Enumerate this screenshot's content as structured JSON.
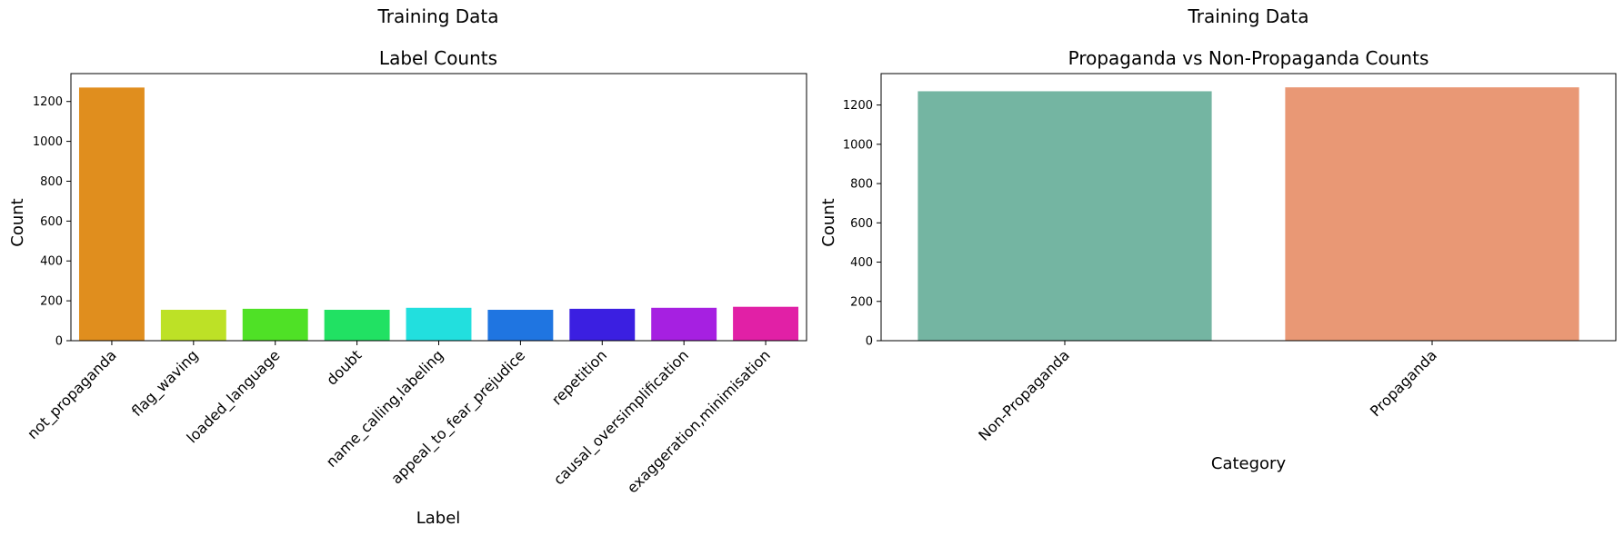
{
  "chart_data": [
    {
      "type": "bar",
      "suptitle": "Training Data",
      "title": "Label Counts",
      "xlabel": "Label",
      "ylabel": "Count",
      "ylim": [
        0,
        1340
      ],
      "yticks": [
        0,
        200,
        400,
        600,
        800,
        1000,
        1200
      ],
      "categories": [
        "not_propaganda",
        "flag_waving",
        "loaded_language",
        "doubt",
        "name_calling,labeling",
        "appeal_to_fear_prejudice",
        "repetition",
        "causal_oversimplification",
        "exaggeration,minimisation"
      ],
      "values": [
        1270,
        155,
        160,
        155,
        165,
        155,
        160,
        165,
        170
      ],
      "colors": [
        "#e08e1e",
        "#bde126",
        "#4fe126",
        "#21e163",
        "#22dfde",
        "#1f75e1",
        "#3b1fe1",
        "#a620e1",
        "#e120a6"
      ]
    },
    {
      "type": "bar",
      "suptitle": "Training Data",
      "title": "Propaganda vs Non-Propaganda Counts",
      "xlabel": "Category",
      "ylabel": "Count",
      "ylim": [
        0,
        1360
      ],
      "yticks": [
        0,
        200,
        400,
        600,
        800,
        1000,
        1200
      ],
      "categories": [
        "Non-Propaganda",
        "Propaganda"
      ],
      "values": [
        1270,
        1290
      ],
      "colors": [
        "#74b5a2",
        "#e99875"
      ]
    }
  ]
}
